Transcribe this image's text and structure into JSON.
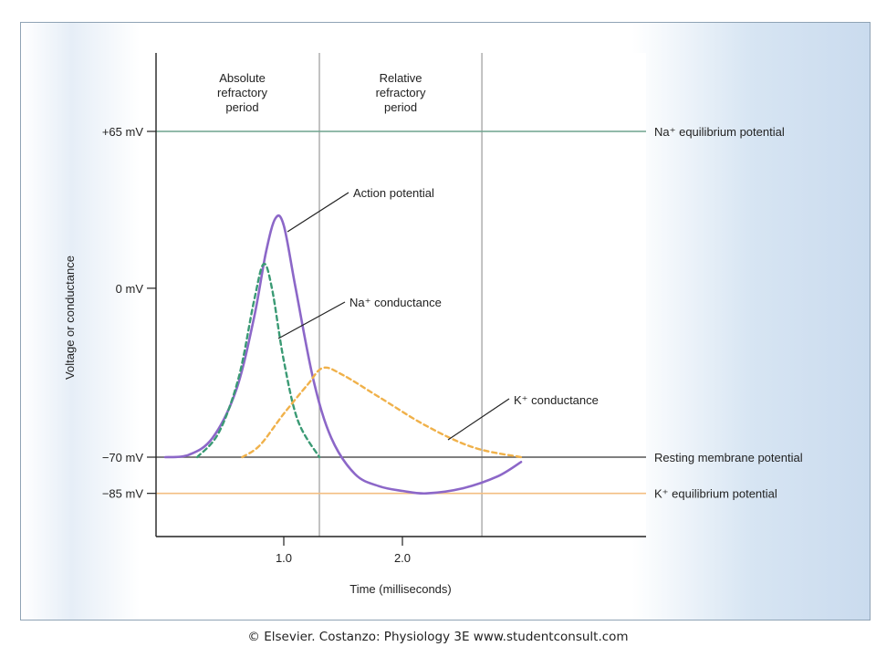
{
  "chart_data": {
    "type": "line",
    "xlabel": "Time (milliseconds)",
    "ylabel": "Voltage or conductance",
    "xlim": [
      0,
      4.0
    ],
    "ylim": [
      -95,
      100
    ],
    "x_ticks": [
      {
        "value": 1.0,
        "label": "1.0"
      },
      {
        "value": 2.0,
        "label": "2.0"
      }
    ],
    "y_ticks": [
      {
        "value": 65,
        "label": "+65 mV"
      },
      {
        "value": 0,
        "label": "0 mV"
      },
      {
        "value": -70,
        "label": "−70 mV"
      },
      {
        "value": -85,
        "label": "−85 mV"
      }
    ],
    "reference_lines": [
      {
        "name": "Na⁺ equilibrium potential",
        "y": 65,
        "color": "#6fa38e"
      },
      {
        "name": "Resting membrane potential",
        "y": -70,
        "color": "#555555"
      },
      {
        "name": "K⁺ equilibrium potential",
        "y": -85,
        "color": "#f3be82"
      }
    ],
    "periods": [
      {
        "name": "Absolute refractory period",
        "label_lines": [
          "Absolute",
          "refractory",
          "period"
        ],
        "x_start": 0,
        "x_end": 1.3
      },
      {
        "name": "Relative refractory period",
        "label_lines": [
          "Relative",
          "refractory",
          "period"
        ],
        "x_start": 1.3,
        "x_end": 2.67
      }
    ],
    "series": [
      {
        "name": "Action potential",
        "style": "solid",
        "color": "#8c67c8",
        "points": [
          [
            0,
            -70
          ],
          [
            0.2,
            -69
          ],
          [
            0.4,
            -62
          ],
          [
            0.6,
            -42
          ],
          [
            0.75,
            -12
          ],
          [
            0.85,
            15
          ],
          [
            0.93,
            29
          ],
          [
            1.0,
            26
          ],
          [
            1.1,
            0
          ],
          [
            1.25,
            -38
          ],
          [
            1.4,
            -62
          ],
          [
            1.6,
            -77
          ],
          [
            1.8,
            -82
          ],
          [
            2.0,
            -84
          ],
          [
            2.2,
            -85
          ],
          [
            2.5,
            -83
          ],
          [
            2.8,
            -78
          ],
          [
            3.0,
            -72
          ]
        ]
      },
      {
        "name": "Na⁺ conductance",
        "style": "dashed",
        "color": "#3a9a74",
        "points": [
          [
            0.27,
            -70
          ],
          [
            0.45,
            -60
          ],
          [
            0.62,
            -37
          ],
          [
            0.75,
            -5
          ],
          [
            0.83,
            10
          ],
          [
            0.9,
            0
          ],
          [
            1.0,
            -30
          ],
          [
            1.12,
            -55
          ],
          [
            1.3,
            -70
          ]
        ]
      },
      {
        "name": "K⁺ conductance",
        "style": "dashed",
        "color": "#f0b14a",
        "points": [
          [
            0.65,
            -70
          ],
          [
            0.8,
            -65
          ],
          [
            1.0,
            -52
          ],
          [
            1.2,
            -40
          ],
          [
            1.33,
            -33
          ],
          [
            1.5,
            -36
          ],
          [
            1.8,
            -45
          ],
          [
            2.2,
            -57
          ],
          [
            2.6,
            -66
          ],
          [
            3.0,
            -70
          ]
        ]
      }
    ],
    "annotations": [
      {
        "text": "Action potential",
        "target": "Action potential"
      },
      {
        "text": "Na⁺ conductance",
        "target": "Na⁺ conductance"
      },
      {
        "text": "K⁺ conductance",
        "target": "K⁺ conductance"
      }
    ],
    "grid": false
  },
  "credit": "© Elsevier. Costanzo: Physiology 3E www.studentconsult.com"
}
